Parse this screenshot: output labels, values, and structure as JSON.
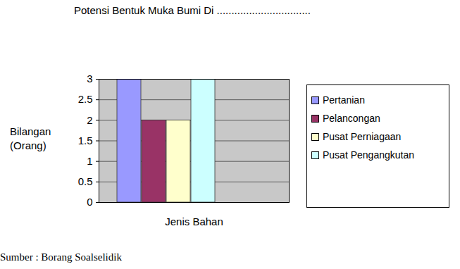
{
  "chart_data": {
    "type": "bar",
    "title": "Potensi Bentuk Muka Bumi Di ................................",
    "x_label": "Jenis Bahan",
    "y_label": "Bilangan (Orang)",
    "source": "Sumber : Borang Soalselidik",
    "categories": [
      null
    ],
    "series": [
      {
        "name": "Pertanian",
        "color": "#9999ff",
        "values": [
          3
        ]
      },
      {
        "name": "Pelancongan",
        "color": "#993366",
        "values": [
          2
        ]
      },
      {
        "name": "Pusat Perniagaan",
        "color": "#ffffcc",
        "values": [
          2
        ]
      },
      {
        "name": "Pusat Pengangkutan",
        "color": "#ccffff",
        "values": [
          3
        ]
      }
    ],
    "ylim": [
      0,
      3
    ],
    "yticks": [
      0,
      0.5,
      1,
      1.5,
      2,
      2.5,
      3
    ],
    "grid": true,
    "legend": "right"
  }
}
